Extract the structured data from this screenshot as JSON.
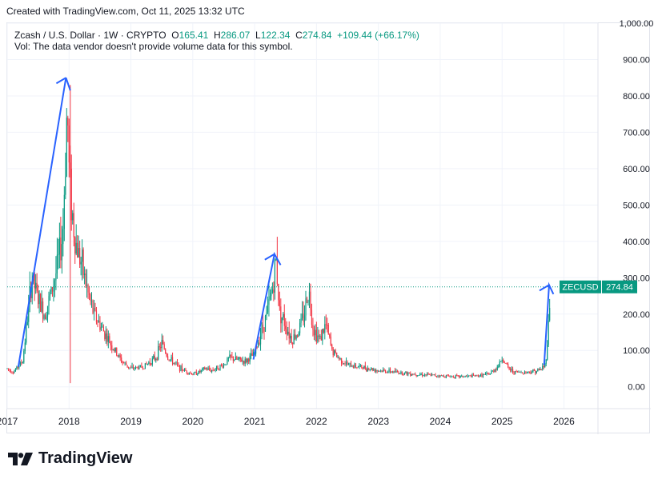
{
  "header": {
    "created_text": "Created with TradingView.com, Oct 11, 2025 13:32 UTC"
  },
  "legend": {
    "symbol": "Zcash / U.S. Dollar · 1W · CRYPTO",
    "o_label": "O",
    "o_value": "165.41",
    "h_label": "H",
    "h_value": "286.07",
    "l_label": "L",
    "l_value": "122.34",
    "c_label": "C",
    "c_value": "274.84",
    "change": "+109.44 (+66.17%)",
    "volume_note": "Vol: The data vendor doesn't provide volume data for this symbol."
  },
  "price_tag": {
    "symbol": "ZECUSD",
    "value": "274.84"
  },
  "branding": {
    "logo_text": "TradingView"
  },
  "colors": {
    "up": "#089981",
    "down": "#f23645",
    "drawing": "#2962ff",
    "grid": "#f0f3fa",
    "marker_line": "#f23645"
  },
  "chart_data": {
    "type": "candlestick",
    "y_ticks": [
      "0.00",
      "100.00",
      "200.00",
      "300.00",
      "400.00",
      "500.00",
      "600.00",
      "700.00",
      "800.00",
      "900.00",
      "1,000.00"
    ],
    "x_ticks": [
      "2017",
      "2018",
      "2019",
      "2020",
      "2021",
      "2022",
      "2023",
      "2024",
      "2025",
      "2026"
    ],
    "ylim": [
      -60,
      1000
    ],
    "xlim": [
      2017.0,
      2026.55
    ],
    "last_price": 274.84,
    "grid": true,
    "vertical_marker_x": 2018.02,
    "arrows": [
      {
        "x": [
          2017.18,
          2017.95,
          2018.02
        ],
        "y": [
          55,
          850,
          815
        ]
      },
      {
        "x": [
          2020.98,
          2021.32,
          2021.42
        ],
        "y": [
          75,
          365,
          335
        ]
      },
      {
        "x": [
          2025.68,
          2025.76,
          2025.83
        ],
        "y": [
          60,
          280,
          255
        ]
      }
    ],
    "close_path": {
      "x": [
        2017.0,
        2017.1,
        2017.25,
        2017.4,
        2017.5,
        2017.6,
        2017.7,
        2017.8,
        2017.9,
        2017.97,
        2018.0,
        2018.05,
        2018.1,
        2018.2,
        2018.3,
        2018.4,
        2018.5,
        2018.6,
        2018.7,
        2018.85,
        2019.0,
        2019.2,
        2019.4,
        2019.5,
        2019.6,
        2019.8,
        2020.0,
        2020.1,
        2020.2,
        2020.3,
        2020.5,
        2020.6,
        2020.7,
        2020.85,
        2021.0,
        2021.1,
        2021.2,
        2021.3,
        2021.35,
        2021.4,
        2021.5,
        2021.6,
        2021.7,
        2021.8,
        2021.87,
        2021.95,
        2022.05,
        2022.15,
        2022.25,
        2022.35,
        2022.5,
        2022.7,
        2023.0,
        2023.3,
        2023.6,
        2024.0,
        2024.3,
        2024.6,
        2024.8,
        2024.95,
        2025.0,
        2025.1,
        2025.2,
        2025.4,
        2025.6,
        2025.7,
        2025.75,
        2025.78
      ],
      "y": [
        50,
        40,
        70,
        300,
        240,
        200,
        250,
        320,
        420,
        780,
        600,
        480,
        400,
        340,
        260,
        200,
        170,
        140,
        110,
        70,
        50,
        55,
        80,
        120,
        80,
        50,
        35,
        40,
        50,
        45,
        60,
        80,
        75,
        70,
        90,
        150,
        200,
        280,
        350,
        210,
        170,
        130,
        150,
        200,
        270,
        160,
        130,
        170,
        100,
        80,
        60,
        55,
        45,
        40,
        35,
        30,
        28,
        30,
        35,
        60,
        80,
        50,
        40,
        40,
        45,
        60,
        170,
        275
      ]
    }
  }
}
